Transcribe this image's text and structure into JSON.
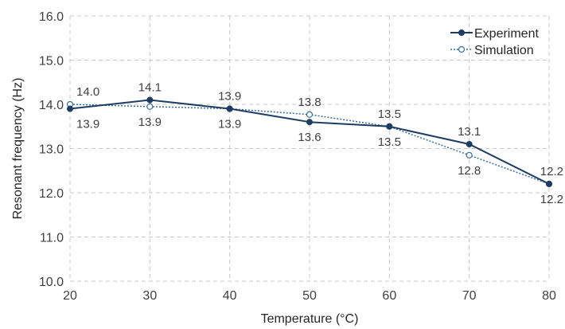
{
  "chart_data": {
    "type": "line",
    "title": "",
    "xlabel": "Temperature (°C)",
    "ylabel": "Resonant frequency (Hz)",
    "xlim": [
      20,
      80
    ],
    "ylim": [
      10.0,
      16.0
    ],
    "x": [
      20,
      30,
      40,
      50,
      60,
      70,
      80
    ],
    "x_tick_labels": [
      "20",
      "30",
      "40",
      "50",
      "60",
      "70",
      "80"
    ],
    "y_ticks": [
      10.0,
      11.0,
      12.0,
      13.0,
      14.0,
      15.0,
      16.0
    ],
    "y_tick_labels": [
      "10.0",
      "11.0",
      "12.0",
      "13.0",
      "14.0",
      "15.0",
      "16.0"
    ],
    "grid": true,
    "legend_position": "top-right",
    "series": [
      {
        "name": "Experiment",
        "values": [
          13.9,
          14.1,
          13.9,
          13.6,
          13.5,
          13.1,
          12.2
        ],
        "labels": [
          "13.9",
          "14.1",
          "13.9",
          "13.6",
          "13.5",
          "13.1",
          "12.2"
        ],
        "color": "#1f3d63",
        "line_style": "solid",
        "marker": "filled-circle"
      },
      {
        "name": "Simulation",
        "values": [
          14.0,
          13.95,
          13.9,
          13.77,
          13.5,
          12.85,
          12.2
        ],
        "labels": [
          "14.0",
          "13.9",
          "13.9",
          "13.8",
          "13.5",
          "12.8",
          "12.2"
        ],
        "color": "#3b6e99",
        "line_style": "dotted",
        "marker": "open-circle"
      }
    ]
  }
}
